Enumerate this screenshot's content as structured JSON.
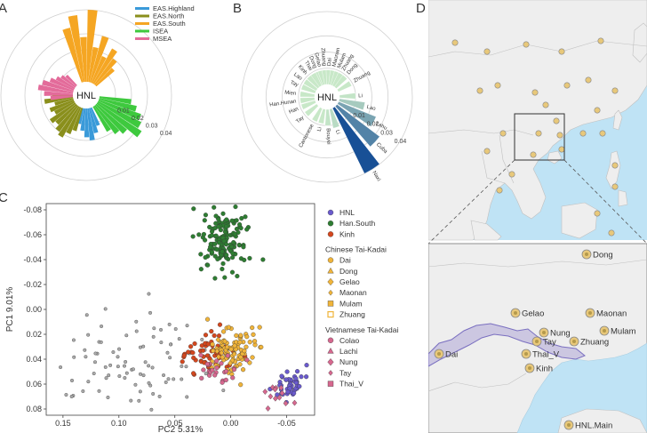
{
  "panel_labels": [
    "A",
    "B",
    "C",
    "D"
  ],
  "chart_data": [
    {
      "panel": "A",
      "type": "bar",
      "polar": true,
      "center_label": "HNL",
      "radial_ticks": [
        "0.01",
        "0.02",
        "0.03",
        "0.04"
      ],
      "rmax": 0.045,
      "legend": [
        {
          "name": "EAS.Highland",
          "color": "#3a9ad9"
        },
        {
          "name": "EAS.North",
          "color": "#8a8f1c"
        },
        {
          "name": "EAS.South",
          "color": "#f5a623"
        },
        {
          "name": "ISEA",
          "color": "#3ec93e"
        },
        {
          "name": "MSEA",
          "color": "#e36b9a"
        }
      ],
      "groups": [
        {
          "name": "EAS.South",
          "color": "#f5a623",
          "start_deg": 340,
          "values": [
            0.035,
            0.042,
            0.028,
            0.045,
            0.022,
            0.03,
            0.018,
            0.025,
            0.02,
            0.015
          ]
        },
        {
          "name": "ISEA",
          "color": "#3ec93e",
          "start_deg": 95,
          "values": [
            0.02,
            0.024,
            0.028,
            0.03,
            0.033,
            0.025,
            0.022,
            0.018
          ]
        },
        {
          "name": "EAS.Highland",
          "color": "#3a9ad9",
          "start_deg": 155,
          "values": [
            0.012,
            0.016,
            0.02,
            0.018,
            0.014,
            0.01
          ]
        },
        {
          "name": "EAS.North",
          "color": "#8a8f1c",
          "start_deg": 195,
          "values": [
            0.015,
            0.018,
            0.022,
            0.02,
            0.017,
            0.019,
            0.014,
            0.016,
            0.012,
            0.018,
            0.013
          ]
        },
        {
          "name": "MSEA",
          "color": "#e36b9a",
          "start_deg": 262,
          "values": [
            0.014,
            0.018,
            0.022,
            0.02,
            0.016,
            0.013,
            0.011,
            0.009
          ]
        }
      ]
    },
    {
      "panel": "B",
      "type": "bar",
      "polar": true,
      "center_label": "HNL",
      "radial_ticks": [
        "0.01",
        "0.02",
        "0.03",
        "0.04"
      ],
      "rmax": 0.045,
      "bars": [
        {
          "label": "Dong",
          "angle": 338,
          "value": 0.009
        },
        {
          "label": "Gelao",
          "angle": 346,
          "value": 0.009
        },
        {
          "label": "Zhuang",
          "angle": 355,
          "value": 0.009
        },
        {
          "label": "Dai",
          "angle": 4,
          "value": 0.009
        },
        {
          "label": "Maonan",
          "angle": 13,
          "value": 0.009
        },
        {
          "label": "Mulam",
          "angle": 22,
          "value": 0.009
        },
        {
          "label": "Zhuang",
          "angle": 31,
          "value": 0.009
        },
        {
          "label": "Dong",
          "angle": 42,
          "value": 0.009
        },
        {
          "label": "Zhuang",
          "angle": 60,
          "value": 0.009
        },
        {
          "label": "Li",
          "angle": 88,
          "value": 0.01
        },
        {
          "label": "Lao",
          "angle": 104,
          "value": 0.016
        },
        {
          "label": "Lahu",
          "angle": 118,
          "value": 0.025
        },
        {
          "label": "Cuba",
          "angle": 133,
          "value": 0.033
        },
        {
          "label": "Naxi",
          "angle": 148,
          "value": 0.045
        },
        {
          "label": "Li",
          "angle": 163,
          "value": 0.012
        },
        {
          "label": "Bouyei",
          "angle": 178,
          "value": 0.01
        },
        {
          "label": "Li",
          "angle": 193,
          "value": 0.009
        },
        {
          "label": "Cantonese",
          "angle": 208,
          "value": 0.009
        },
        {
          "label": "Tay",
          "angle": 230,
          "value": 0.009
        },
        {
          "label": "Han",
          "angle": 248,
          "value": 0.009
        },
        {
          "label": "Han.Hunan",
          "angle": 262,
          "value": 0.009
        },
        {
          "label": "Mien",
          "angle": 276,
          "value": 0.009
        },
        {
          "label": "Tay",
          "angle": 292,
          "value": 0.009
        },
        {
          "label": "Lao",
          "angle": 305,
          "value": 0.009
        },
        {
          "label": "Kinh",
          "angle": 318,
          "value": 0.009
        },
        {
          "label": "Thai",
          "angle": 329,
          "value": 0.009
        }
      ]
    },
    {
      "panel": "C",
      "type": "scatter",
      "xlabel": "PC2",
      "xlabel_pct": "5.31%",
      "ylabel": "PC1",
      "ylabel_pct": "9.01%",
      "xlim": [
        0.165,
        -0.075
      ],
      "ylim": [
        -0.085,
        0.085
      ],
      "y_reversed": true,
      "xticks": [
        {
          "value": 0.15,
          "label": "0.15"
        },
        {
          "value": 0.1,
          "label": "0.10"
        },
        {
          "value": 0.05,
          "label": "0.05"
        },
        {
          "value": 0.0,
          "label": "0.00"
        },
        {
          "value": -0.05,
          "label": "-0.05"
        }
      ],
      "yticks": [
        {
          "value": -0.08,
          "label": "-0.08"
        },
        {
          "value": -0.06,
          "label": "-0.06"
        },
        {
          "value": -0.04,
          "label": "-0.04"
        },
        {
          "value": -0.02,
          "label": "-0.02"
        },
        {
          "value": 0.0,
          "label": "0.00"
        },
        {
          "value": 0.02,
          "label": "0.02"
        },
        {
          "value": 0.04,
          "label": "0.04"
        },
        {
          "value": 0.06,
          "label": "0.06"
        },
        {
          "value": 0.08,
          "label": "0.08"
        }
      ],
      "legend": [
        {
          "kind": "item",
          "name": "HNL",
          "color": "#6a5acd",
          "shape": "circle"
        },
        {
          "kind": "item",
          "name": "Han.South",
          "color": "#2e7d32",
          "shape": "circle"
        },
        {
          "kind": "item",
          "name": "Kinh",
          "color": "#d4471e",
          "shape": "circle"
        },
        {
          "kind": "header",
          "name": "Chinese Tai-Kadai"
        },
        {
          "kind": "item",
          "name": "Dai",
          "color": "#f0b43a",
          "shape": "circle"
        },
        {
          "kind": "item",
          "name": "Dong",
          "color": "#f0b43a",
          "shape": "triangle"
        },
        {
          "kind": "item",
          "name": "Gelao",
          "color": "#f0b43a",
          "shape": "diamond"
        },
        {
          "kind": "item",
          "name": "Maonan",
          "color": "#f0b43a",
          "shape": "diamond-small"
        },
        {
          "kind": "item",
          "name": "Mulam",
          "color": "#f0b43a",
          "shape": "square"
        },
        {
          "kind": "item",
          "name": "Zhuang",
          "color": "#f0b43a",
          "shape": "square-outline"
        },
        {
          "kind": "header",
          "name": "Vietnamese Tai-Kadai"
        },
        {
          "kind": "item",
          "name": "Colao",
          "color": "#d6688f",
          "shape": "circle"
        },
        {
          "kind": "item",
          "name": "Lachi",
          "color": "#d6688f",
          "shape": "triangle"
        },
        {
          "kind": "item",
          "name": "Nung",
          "color": "#d6688f",
          "shape": "diamond"
        },
        {
          "kind": "item",
          "name": "Tay",
          "color": "#d6688f",
          "shape": "diamond-small"
        },
        {
          "kind": "item",
          "name": "Thai_V",
          "color": "#d6688f",
          "shape": "square"
        }
      ],
      "clusters": [
        {
          "name": "background",
          "color": "#aaaaaa",
          "shape": "circle",
          "cx": 0.085,
          "cy": 0.04,
          "sx": 0.038,
          "sy": 0.02,
          "n": 90
        },
        {
          "name": "Han.South",
          "color": "#2e7d32",
          "shape": "circle",
          "cx": 0.006,
          "cy": -0.055,
          "sx": 0.01,
          "sy": 0.013,
          "n": 150
        },
        {
          "name": "Kinh",
          "color": "#d4471e",
          "shape": "circle",
          "cx": 0.022,
          "cy": 0.036,
          "sx": 0.012,
          "sy": 0.007,
          "n": 55
        },
        {
          "name": "Dai",
          "color": "#f0b43a",
          "shape": "circle",
          "cx": -0.004,
          "cy": 0.031,
          "sx": 0.011,
          "sy": 0.009,
          "n": 80
        },
        {
          "name": "Gelao",
          "color": "#f0b43a",
          "shape": "diamond",
          "cx": 0.004,
          "cy": 0.036,
          "sx": 0.008,
          "sy": 0.007,
          "n": 20
        },
        {
          "name": "Colao",
          "color": "#d6688f",
          "shape": "circle",
          "cx": 0.012,
          "cy": 0.046,
          "sx": 0.01,
          "sy": 0.006,
          "n": 25
        },
        {
          "name": "HNL",
          "color": "#6a5acd",
          "shape": "circle",
          "cx": -0.052,
          "cy": 0.06,
          "sx": 0.007,
          "sy": 0.006,
          "n": 45
        },
        {
          "name": "Nung",
          "color": "#d6688f",
          "shape": "diamond",
          "cx": -0.04,
          "cy": 0.07,
          "sx": 0.006,
          "sy": 0.005,
          "n": 12
        }
      ]
    }
  ],
  "map": {
    "region": "East and Southeast Asia",
    "inset_labels": [
      {
        "name": "Dong"
      },
      {
        "name": "Gelao"
      },
      {
        "name": "Maonan"
      },
      {
        "name": "Mulam"
      },
      {
        "name": "Nung"
      },
      {
        "name": "Tay"
      },
      {
        "name": "Zhuang"
      },
      {
        "name": "Thai_V"
      },
      {
        "name": "Dai"
      },
      {
        "name": "Kinh"
      },
      {
        "name": "HNL.Main"
      }
    ],
    "colors": {
      "sea": "#bfe3f5",
      "land": "#eeeeee",
      "border": "#c0c0c0",
      "marker": "#e8c87a",
      "shade": "#8b7fc8"
    }
  }
}
